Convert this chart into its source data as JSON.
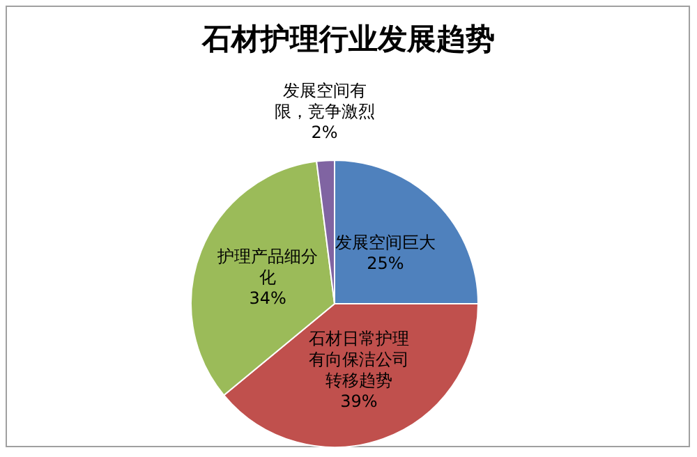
{
  "chart_data": {
    "type": "pie",
    "title": "石材护理行业发展趋势",
    "categories": [
      "发展空间巨大",
      "石材日常护理有向保洁公司转移趋势",
      "护理产品细分化",
      "发展空间有限，竞争激烈"
    ],
    "values": [
      25,
      39,
      34,
      2
    ],
    "colors": [
      "#4f81bd",
      "#c0504d",
      "#9bbb59",
      "#8064a2"
    ],
    "value_labels": [
      "25%",
      "39%",
      "34%",
      "2%"
    ],
    "legend": false
  }
}
